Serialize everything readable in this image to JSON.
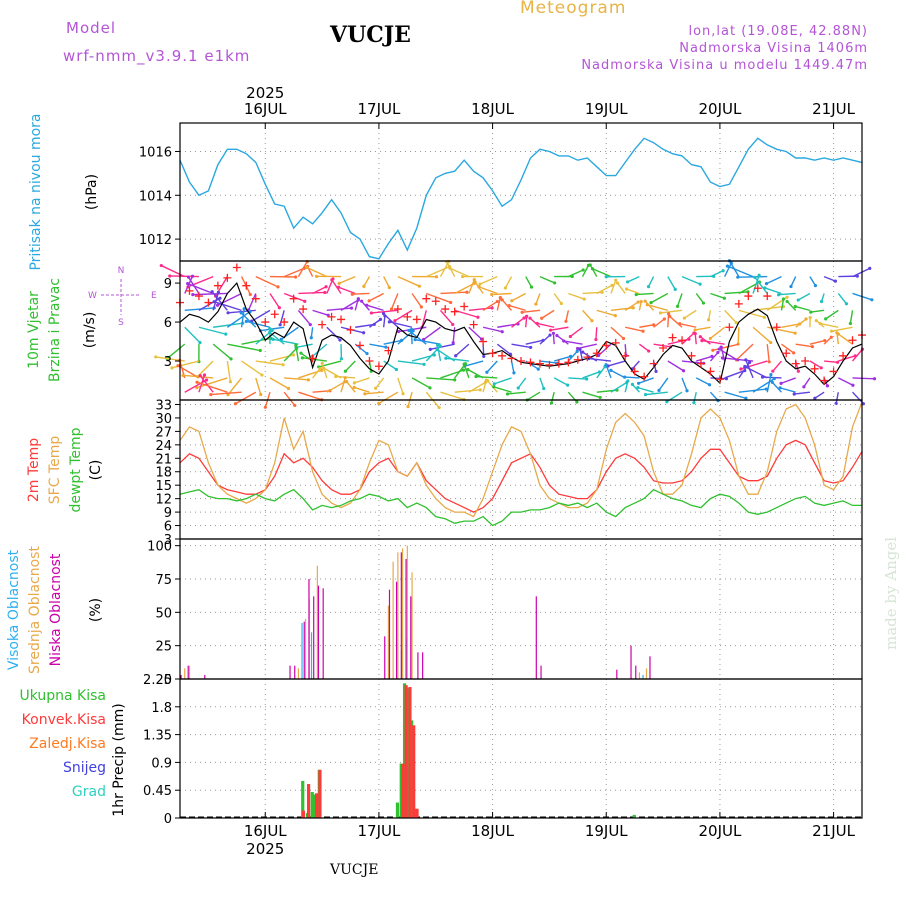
{
  "header": {
    "model_label": "Model",
    "model_name": "wrf-nmm_v3.9.1 e1km",
    "station": "VUCJE",
    "title": "Meteogram",
    "coords": "lon,lat (19.08E, 42.88N)",
    "altitude": "Nadmorska Visina 1406m",
    "model_altitude": "Nadmorska Visina u modelu 1449.47m"
  },
  "footer": {
    "station": "VUCJE",
    "watermark": "made by Angel"
  },
  "time_axis": {
    "year": "2025",
    "days": [
      "16JUL",
      "17JUL",
      "18JUL",
      "19JUL",
      "20JUL",
      "21JUL"
    ],
    "range_hours": [
      0,
      144
    ]
  },
  "colors": {
    "pressure": "#2aa8e0",
    "wind_speed": "#000000",
    "gust": "#ff2020",
    "t2m": "#ff3a3a",
    "sfc": "#e8a94a",
    "dewpt": "#30c030",
    "high": "#30b0f0",
    "mid": "#e8a94a",
    "low": "#cc00aa",
    "total": "#30c030",
    "conv": "#ff3a3a",
    "frozen": "#ff7a20",
    "snow": "#4040e0",
    "hail": "#30d0c0"
  },
  "chart_data": [
    {
      "type": "line",
      "panel": "pressure",
      "ylabel": "Pritisak na nivou mora",
      "unit": "(hPa)",
      "ylim": [
        1011,
        1017.3
      ],
      "yticks": [
        "1012",
        "1014",
        "1016"
      ],
      "x": [
        0,
        2,
        4,
        6,
        8,
        10,
        12,
        14,
        16,
        18,
        20,
        22,
        24,
        26,
        28,
        30,
        32,
        34,
        36,
        38,
        40,
        42,
        44,
        46,
        48,
        50,
        52,
        54,
        56,
        58,
        60,
        62,
        64,
        66,
        68,
        70,
        72,
        74,
        76,
        78,
        80,
        82,
        84,
        86,
        88,
        90,
        92,
        94,
        96,
        98,
        100,
        102,
        104,
        106,
        108,
        110,
        112,
        114,
        116,
        118,
        120,
        122,
        124,
        126,
        128,
        130,
        132,
        134,
        136,
        138,
        140,
        142,
        144
      ],
      "series": [
        {
          "name": "Pritisak na nivou mora",
          "values": [
            1015.6,
            1014.6,
            1014.0,
            1014.2,
            1015.4,
            1016.1,
            1016.1,
            1015.9,
            1015.5,
            1014.5,
            1013.6,
            1013.5,
            1012.5,
            1013.0,
            1012.7,
            1013.2,
            1013.8,
            1013.2,
            1012.3,
            1012.0,
            1011.2,
            1011.1,
            1011.8,
            1012.4,
            1011.5,
            1012.5,
            1014.0,
            1014.8,
            1015.0,
            1015.1,
            1015.6,
            1015.1,
            1014.8,
            1014.2,
            1013.5,
            1013.8,
            1014.7,
            1015.7,
            1016.1,
            1016.0,
            1015.8,
            1015.8,
            1015.6,
            1015.7,
            1015.3,
            1014.9,
            1014.9,
            1015.5,
            1016.1,
            1016.6,
            1016.4,
            1016.1,
            1015.9,
            1015.8,
            1015.4,
            1015.3,
            1014.6,
            1014.4,
            1014.5,
            1015.3,
            1016.1,
            1016.6,
            1016.3,
            1016.1,
            1016.0,
            1015.7,
            1015.7,
            1015.6,
            1015.7,
            1015.6,
            1015.7,
            1015.6,
            1015.5
          ]
        }
      ]
    },
    {
      "type": "line",
      "panel": "wind",
      "ylabel": "10m Vjetar Brzina i Pravac",
      "unit": "(m/s)",
      "ylim": [
        0,
        10.7
      ],
      "yticks": [
        "3",
        "6",
        "9"
      ],
      "compass": {
        "n": "N",
        "s": "S",
        "e": "E",
        "w": "W"
      },
      "x": [
        0,
        2,
        4,
        6,
        8,
        10,
        12,
        14,
        16,
        18,
        20,
        22,
        24,
        26,
        28,
        30,
        32,
        34,
        36,
        38,
        40,
        42,
        44,
        46,
        48,
        50,
        52,
        54,
        56,
        58,
        60,
        62,
        64,
        66,
        68,
        70,
        72,
        74,
        76,
        78,
        80,
        82,
        84,
        86,
        88,
        90,
        92,
        94,
        96,
        98,
        100,
        102,
        104,
        106,
        108,
        110,
        112,
        114,
        116,
        118,
        120,
        122,
        124,
        126,
        128,
        130,
        132,
        134,
        136,
        138,
        140,
        142,
        144
      ],
      "series": [
        {
          "name": "speed",
          "values": [
            6.0,
            6.6,
            6.4,
            6.0,
            6.8,
            8.2,
            9.0,
            7.0,
            6.0,
            4.6,
            5.2,
            4.8,
            6.0,
            5.5,
            2.5,
            4.6,
            5.0,
            4.8,
            4.2,
            3.2,
            2.4,
            2.0,
            3.0,
            5.6,
            5.0,
            4.8,
            6.2,
            6.0,
            5.5,
            5.3,
            5.6,
            4.5,
            3.5,
            3.6,
            3.8,
            3.3,
            2.9,
            2.8,
            2.7,
            2.6,
            2.7,
            2.8,
            3.0,
            3.2,
            3.5,
            4.5,
            4.2,
            3.0,
            2.0,
            1.6,
            2.5,
            3.5,
            4.2,
            4.0,
            3.0,
            2.5,
            2.0,
            1.3,
            4.5,
            6.0,
            6.6,
            7.0,
            6.5,
            4.5,
            3.0,
            2.4,
            2.6,
            2.0,
            1.2,
            1.8,
            3.0,
            4.0,
            4.3
          ]
        },
        {
          "name": "gust",
          "values": [
            7.5,
            8.4,
            8.0,
            7.5,
            8.8,
            9.4,
            10.2,
            8.8,
            7.8,
            6.0,
            6.6,
            6.0,
            7.8,
            7.0,
            3.2,
            5.8,
            6.4,
            6.2,
            5.4,
            4.2,
            3.0,
            2.6,
            3.8,
            7.0,
            6.4,
            6.2,
            7.8,
            7.6,
            7.0,
            6.8,
            7.2,
            5.8,
            4.5,
            3.6,
            3.4,
            3.2,
            3.0,
            2.9,
            2.8,
            2.7,
            2.8,
            2.9,
            3.1,
            3.3,
            3.6,
            4.2,
            4.4,
            3.4,
            2.2,
            1.8,
            2.8,
            4.0,
            4.8,
            4.6,
            3.4,
            2.8,
            2.2,
            1.6,
            5.6,
            7.4,
            8.0,
            8.6,
            8.0,
            5.6,
            3.6,
            2.8,
            3.0,
            2.4,
            1.5,
            2.2,
            3.4,
            4.6,
            5.0
          ]
        }
      ]
    },
    {
      "type": "line",
      "panel": "temperature",
      "ylabels": [
        "2m Temp",
        "SFC Temp",
        "dewpt Temp"
      ],
      "unit": "(C)",
      "ylim": [
        3,
        34
      ],
      "yticks": [
        "3",
        "6",
        "9",
        "12",
        "15",
        "18",
        "21",
        "24",
        "27",
        "30",
        "33"
      ],
      "x": [
        0,
        2,
        4,
        6,
        8,
        10,
        12,
        14,
        16,
        18,
        20,
        22,
        24,
        26,
        28,
        30,
        32,
        34,
        36,
        38,
        40,
        42,
        44,
        46,
        48,
        50,
        52,
        54,
        56,
        58,
        60,
        62,
        64,
        66,
        68,
        70,
        72,
        74,
        76,
        78,
        80,
        82,
        84,
        86,
        88,
        90,
        92,
        94,
        96,
        98,
        100,
        102,
        104,
        106,
        108,
        110,
        112,
        114,
        116,
        118,
        120,
        122,
        124,
        126,
        128,
        130,
        132,
        134,
        136,
        138,
        140,
        142,
        144
      ],
      "series": [
        {
          "name": "2m Temp",
          "values": [
            20,
            22,
            21,
            18,
            15,
            14,
            13.5,
            13,
            13,
            14,
            17,
            22,
            20,
            21,
            19,
            16,
            14,
            13,
            13,
            14,
            18,
            20,
            21,
            18,
            17,
            20,
            16,
            14,
            12,
            11,
            10,
            9,
            10,
            12,
            16,
            20,
            21,
            22,
            19,
            15,
            13,
            12.5,
            12,
            12,
            14,
            18,
            21,
            22,
            21,
            19,
            16,
            15.5,
            15.5,
            16,
            18,
            21,
            23,
            23,
            20,
            17,
            16,
            16,
            17,
            21,
            24,
            25,
            24,
            20,
            16,
            15.5,
            16,
            19,
            22.5
          ]
        },
        {
          "name": "SFC Temp",
          "values": [
            25,
            28,
            27,
            20,
            15,
            13,
            12,
            11,
            12,
            14,
            20,
            30,
            23,
            27,
            18,
            13,
            11,
            10,
            11,
            14,
            20,
            25,
            24,
            18,
            17,
            20,
            15,
            12,
            10,
            9,
            9,
            8,
            12,
            18,
            24,
            28,
            27,
            22,
            15,
            12,
            11,
            10,
            10,
            11,
            14,
            23,
            29,
            31,
            29,
            26,
            18,
            13,
            13,
            15,
            22,
            30,
            32,
            30,
            25,
            17,
            13,
            13,
            18,
            27,
            32,
            33,
            30,
            24,
            15,
            14,
            17,
            28,
            33.5
          ]
        },
        {
          "name": "dewpt Temp",
          "values": [
            13,
            13.5,
            14,
            12.5,
            12,
            12,
            11.5,
            12,
            13,
            12,
            11.5,
            13,
            14,
            12,
            9.5,
            10.5,
            10,
            10.5,
            11.5,
            12,
            13,
            12.5,
            11.5,
            12,
            10,
            11,
            10,
            8,
            7.5,
            6.5,
            7,
            7,
            8,
            6,
            7,
            9,
            9,
            9.5,
            9.5,
            10,
            11,
            10.5,
            11,
            10,
            11,
            9,
            8,
            10,
            11,
            12,
            14,
            13,
            12,
            11.5,
            10.5,
            10,
            12,
            13,
            12.5,
            11,
            9,
            8.5,
            9,
            10,
            11,
            12,
            12.5,
            11,
            10.5,
            11,
            11.5,
            10.5,
            10.5
          ]
        }
      ]
    },
    {
      "type": "bar",
      "panel": "clouds",
      "ylabels": [
        "Visoka Oblacnost",
        "Srednja Oblacnost",
        "Niska Oblacnost"
      ],
      "unit": "(%)",
      "ylim": [
        0,
        105
      ],
      "yticks": [
        "0",
        "25",
        "50",
        "75",
        "100"
      ],
      "series": [
        {
          "name": "Visoka Oblacnost",
          "points": [
            [
              26,
              42
            ],
            [
              27.5,
              60
            ],
            [
              28,
              35
            ],
            [
              47,
              22
            ],
            [
              48,
              30
            ],
            [
              98,
              3
            ]
          ]
        },
        {
          "name": "Srednja Oblacnost",
          "points": [
            [
              1,
              8
            ],
            [
              2,
              10
            ],
            [
              25,
              8
            ],
            [
              26.5,
              45
            ],
            [
              29,
              85
            ],
            [
              44,
              55
            ],
            [
              45,
              88
            ],
            [
              46,
              95
            ],
            [
              47,
              98
            ],
            [
              48,
              100
            ],
            [
              49,
              80
            ],
            [
              97,
              5
            ],
            [
              98.5,
              8
            ]
          ]
        },
        {
          "name": "Niska Oblacnost",
          "points": [
            [
              0,
              3
            ],
            [
              1.5,
              10
            ],
            [
              5,
              3
            ],
            [
              23,
              10
            ],
            [
              24,
              10
            ],
            [
              26,
              43
            ],
            [
              27,
              75
            ],
            [
              28,
              62
            ],
            [
              29,
              70
            ],
            [
              30,
              68
            ],
            [
              43,
              32
            ],
            [
              44,
              67
            ],
            [
              45.5,
              73
            ],
            [
              46.5,
              95
            ],
            [
              47.5,
              90
            ],
            [
              48.5,
              62
            ],
            [
              50,
              20
            ],
            [
              51,
              20
            ],
            [
              75,
              62
            ],
            [
              76,
              10
            ],
            [
              92,
              7
            ],
            [
              95,
              25
            ],
            [
              96,
              10
            ],
            [
              99,
              17
            ]
          ]
        }
      ]
    },
    {
      "type": "bar",
      "panel": "precip",
      "ylabel": "1hr Precip",
      "unit": "(mm)",
      "legend": [
        "Ukupna Kisa",
        "Konvek.Kisa",
        "Zaledj.Kisa",
        "Snijeg",
        "Grad"
      ],
      "ylim": [
        0,
        2.25
      ],
      "yticks": [
        "0",
        "0.45",
        "0.9",
        "1.35",
        "1.8",
        "2.25"
      ],
      "series": [
        {
          "name": "Ukupna Kisa",
          "points": [
            [
              26,
              0.6
            ],
            [
              27,
              0.08
            ],
            [
              28,
              0.42
            ],
            [
              28.5,
              0.38
            ],
            [
              29.5,
              0.78
            ],
            [
              46,
              0.25
            ],
            [
              46.8,
              0.88
            ],
            [
              47.5,
              2.18
            ],
            [
              48.3,
              2.1
            ],
            [
              49,
              1.58
            ],
            [
              49.8,
              0.15
            ],
            [
              96,
              0.05
            ]
          ]
        },
        {
          "name": "Konvek.Kisa",
          "points": [
            [
              25.5,
              0.12
            ],
            [
              26.6,
              0.55
            ],
            [
              28.3,
              0.4
            ],
            [
              29,
              0.78
            ],
            [
              46.5,
              0.88
            ],
            [
              47.2,
              2.15
            ],
            [
              48,
              2.12
            ],
            [
              48.8,
              1.5
            ],
            [
              49.5,
              0.15
            ]
          ]
        }
      ]
    }
  ]
}
